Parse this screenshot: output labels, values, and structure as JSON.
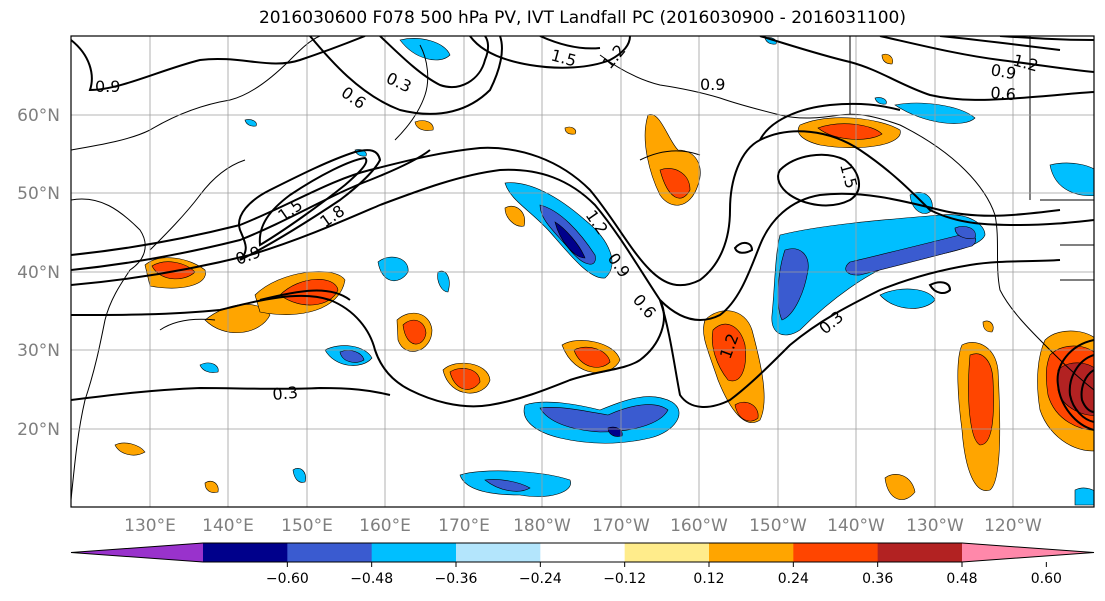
{
  "title": "2016030600 F078 500 hPa PV, IVT Landfall PC (2016030900 - 2016031100)",
  "lat_labels": [
    "60°N",
    "50°N",
    "40°N",
    "30°N",
    "20°N"
  ],
  "lon_labels": [
    "130°E",
    "140°E",
    "150°E",
    "160°E",
    "170°E",
    "180°W",
    "170°W",
    "160°W",
    "150°W",
    "140°W",
    "130°W",
    "120°W"
  ],
  "colorbar": {
    "ticks": [
      "−0.60",
      "−0.48",
      "−0.36",
      "−0.24",
      "−0.12",
      "0.12",
      "0.24",
      "0.36",
      "0.48",
      "0.60"
    ],
    "colors": [
      "#9932cc",
      "#00008b",
      "#3a5bd0",
      "#00bfff",
      "#b3e5fc",
      "#ffffff",
      "#ffec8b",
      "#ffa500",
      "#ff4500",
      "#b22222",
      "#ff88aa"
    ]
  },
  "contour_labels": [
    "0.9",
    "0.6",
    "0.3",
    "1.5",
    "1.2",
    "0.9",
    "0.9",
    "1.5",
    "1.8",
    "1.2",
    "0.9",
    "0.6",
    "1.5",
    "1.2",
    "0.9",
    "0.6",
    "0.3",
    "1.2",
    "0.3"
  ]
}
